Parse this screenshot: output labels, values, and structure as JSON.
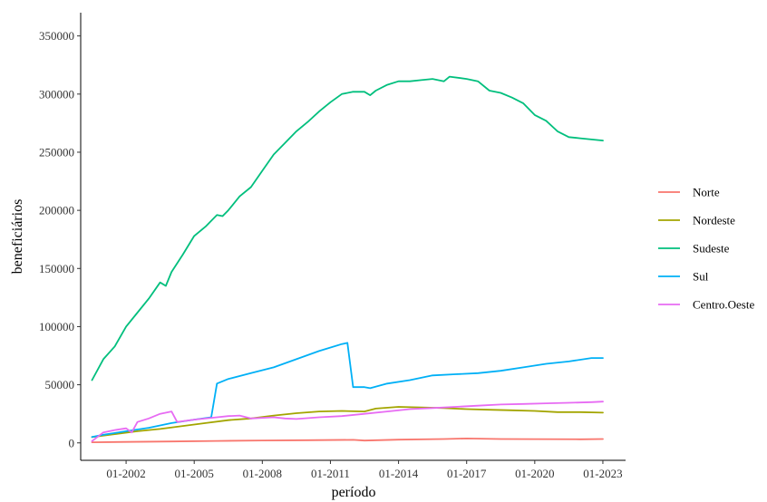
{
  "chart_data": {
    "type": "line",
    "title": "",
    "xlabel": "período",
    "ylabel": "beneficiários",
    "x_ticks": [
      "01-2002",
      "01-2005",
      "01-2008",
      "01-2011",
      "01-2014",
      "01-2017",
      "01-2020",
      "01-2023"
    ],
    "y_ticks": [
      "0",
      "50000",
      "100000",
      "150000",
      "200000",
      "250000",
      "300000",
      "350000"
    ],
    "xlim": [
      "2000-01",
      "2024-01"
    ],
    "ylim": [
      -15000,
      370000
    ],
    "grid": false,
    "legend_position": "right",
    "series": [
      {
        "name": "Norte",
        "color": "#F8766D",
        "points": [
          [
            "2000-07",
            500
          ],
          [
            "2002-01",
            800
          ],
          [
            "2004-01",
            1200
          ],
          [
            "2006-01",
            1700
          ],
          [
            "2008-01",
            2100
          ],
          [
            "2010-01",
            2300
          ],
          [
            "2012-01",
            2600
          ],
          [
            "2012-07",
            2000
          ],
          [
            "2014-01",
            2800
          ],
          [
            "2016-01",
            3300
          ],
          [
            "2017-01",
            3800
          ],
          [
            "2018-07",
            3300
          ],
          [
            "2020-01",
            3200
          ],
          [
            "2022-01",
            3100
          ],
          [
            "2023-01",
            3300
          ]
        ]
      },
      {
        "name": "Nordeste",
        "color": "#A3A500",
        "points": [
          [
            "2000-07",
            5000
          ],
          [
            "2001-07",
            7500
          ],
          [
            "2002-07",
            10000
          ],
          [
            "2003-07",
            12000
          ],
          [
            "2004-07",
            14500
          ],
          [
            "2005-07",
            17000
          ],
          [
            "2006-07",
            19500
          ],
          [
            "2007-07",
            21000
          ],
          [
            "2008-07",
            23500
          ],
          [
            "2009-07",
            25500
          ],
          [
            "2010-07",
            27000
          ],
          [
            "2011-07",
            27500
          ],
          [
            "2012-07",
            27000
          ],
          [
            "2013-01",
            29500
          ],
          [
            "2014-01",
            31000
          ],
          [
            "2015-01",
            30500
          ],
          [
            "2016-01",
            30000
          ],
          [
            "2017-01",
            29000
          ],
          [
            "2018-01",
            28500
          ],
          [
            "2019-01",
            28000
          ],
          [
            "2020-01",
            27500
          ],
          [
            "2021-01",
            26500
          ],
          [
            "2022-01",
            26500
          ],
          [
            "2023-01",
            26000
          ]
        ]
      },
      {
        "name": "Sudeste",
        "color": "#00BF7D",
        "points": [
          [
            "2000-07",
            54000
          ],
          [
            "2001-01",
            72000
          ],
          [
            "2001-07",
            83000
          ],
          [
            "2002-01",
            100000
          ],
          [
            "2002-07",
            112000
          ],
          [
            "2003-01",
            124000
          ],
          [
            "2003-07",
            138000
          ],
          [
            "2003-10",
            135000
          ],
          [
            "2004-01",
            147000
          ],
          [
            "2004-07",
            162000
          ],
          [
            "2005-01",
            178000
          ],
          [
            "2005-07",
            186000
          ],
          [
            "2006-01",
            196000
          ],
          [
            "2006-04",
            195000
          ],
          [
            "2006-07",
            200000
          ],
          [
            "2007-01",
            212000
          ],
          [
            "2007-07",
            220000
          ],
          [
            "2008-01",
            234000
          ],
          [
            "2008-07",
            248000
          ],
          [
            "2009-01",
            258000
          ],
          [
            "2009-07",
            268000
          ],
          [
            "2010-01",
            276000
          ],
          [
            "2010-07",
            285000
          ],
          [
            "2011-01",
            293000
          ],
          [
            "2011-07",
            300000
          ],
          [
            "2012-01",
            302000
          ],
          [
            "2012-07",
            302000
          ],
          [
            "2012-10",
            299000
          ],
          [
            "2013-01",
            303000
          ],
          [
            "2013-07",
            308000
          ],
          [
            "2014-01",
            311000
          ],
          [
            "2014-07",
            311000
          ],
          [
            "2015-01",
            312000
          ],
          [
            "2015-07",
            313000
          ],
          [
            "2016-01",
            311000
          ],
          [
            "2016-04",
            315000
          ],
          [
            "2017-01",
            313000
          ],
          [
            "2017-07",
            311000
          ],
          [
            "2018-01",
            303000
          ],
          [
            "2018-07",
            301000
          ],
          [
            "2019-01",
            297000
          ],
          [
            "2019-07",
            292000
          ],
          [
            "2020-01",
            282000
          ],
          [
            "2020-07",
            277000
          ],
          [
            "2021-01",
            268000
          ],
          [
            "2021-07",
            263000
          ],
          [
            "2022-01",
            262000
          ],
          [
            "2023-01",
            260000
          ]
        ]
      },
      {
        "name": "Sul",
        "color": "#00B0F6",
        "points": [
          [
            "2000-07",
            5000
          ],
          [
            "2001-01",
            7000
          ],
          [
            "2002-01",
            10000
          ],
          [
            "2003-01",
            13000
          ],
          [
            "2004-01",
            17000
          ],
          [
            "2005-01",
            20000
          ],
          [
            "2005-10",
            22000
          ],
          [
            "2006-01",
            51000
          ],
          [
            "2006-07",
            55000
          ],
          [
            "2007-07",
            60000
          ],
          [
            "2008-07",
            65000
          ],
          [
            "2009-07",
            72000
          ],
          [
            "2010-07",
            79000
          ],
          [
            "2011-07",
            85000
          ],
          [
            "2011-10",
            86000
          ],
          [
            "2012-01",
            48000
          ],
          [
            "2012-07",
            48000
          ],
          [
            "2012-10",
            47000
          ],
          [
            "2013-07",
            51000
          ],
          [
            "2014-07",
            54000
          ],
          [
            "2015-07",
            58000
          ],
          [
            "2016-07",
            59000
          ],
          [
            "2017-07",
            60000
          ],
          [
            "2018-07",
            62000
          ],
          [
            "2019-07",
            65000
          ],
          [
            "2020-07",
            68000
          ],
          [
            "2021-07",
            70000
          ],
          [
            "2022-07",
            73000
          ],
          [
            "2023-01",
            73000
          ]
        ]
      },
      {
        "name": "Centro.Oeste",
        "color": "#E76BF3",
        "points": [
          [
            "2000-07",
            1500
          ],
          [
            "2001-01",
            9000
          ],
          [
            "2001-07",
            11000
          ],
          [
            "2002-01",
            12500
          ],
          [
            "2002-04",
            9000
          ],
          [
            "2002-07",
            18000
          ],
          [
            "2003-01",
            21000
          ],
          [
            "2003-07",
            25000
          ],
          [
            "2004-01",
            27000
          ],
          [
            "2004-04",
            18000
          ],
          [
            "2005-01",
            20000
          ],
          [
            "2006-01",
            22000
          ],
          [
            "2006-07",
            23000
          ],
          [
            "2007-01",
            23500
          ],
          [
            "2007-07",
            21000
          ],
          [
            "2008-07",
            22000
          ],
          [
            "2009-01",
            21000
          ],
          [
            "2009-07",
            20500
          ],
          [
            "2010-07",
            22000
          ],
          [
            "2011-07",
            23000
          ],
          [
            "2012-07",
            25000
          ],
          [
            "2013-07",
            27000
          ],
          [
            "2014-07",
            29000
          ],
          [
            "2015-07",
            30000
          ],
          [
            "2016-07",
            31000
          ],
          [
            "2017-07",
            32000
          ],
          [
            "2018-07",
            33000
          ],
          [
            "2019-07",
            33500
          ],
          [
            "2020-07",
            34000
          ],
          [
            "2021-07",
            34500
          ],
          [
            "2022-07",
            35000
          ],
          [
            "2023-01",
            35500
          ]
        ]
      }
    ]
  }
}
